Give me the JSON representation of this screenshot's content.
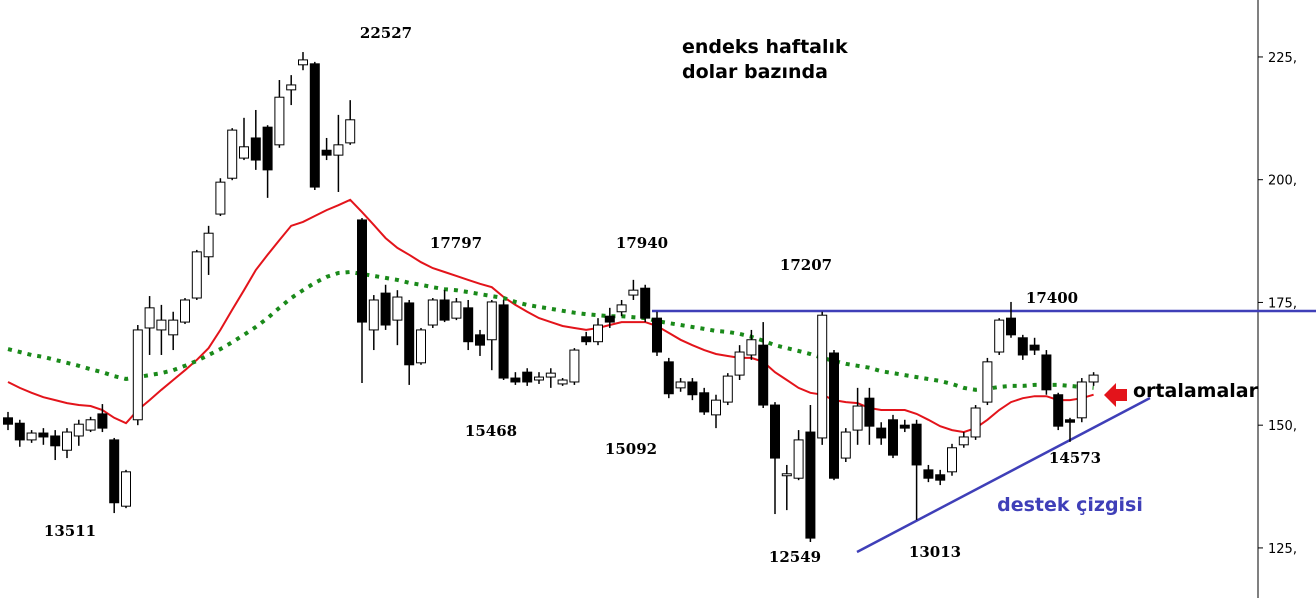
{
  "chart_data": {
    "type": "candlestick",
    "categories": [
      null,
      null,
      null,
      null,
      null,
      null,
      null,
      null,
      null,
      null,
      null,
      null,
      null,
      null,
      null,
      null,
      null,
      null,
      null,
      null,
      null,
      null,
      null,
      null,
      null,
      null,
      null,
      null,
      null,
      null,
      null,
      null,
      null,
      null,
      null,
      null,
      null,
      null,
      null,
      null,
      null,
      null,
      null,
      null,
      null,
      null,
      null,
      null,
      null,
      null,
      null,
      null,
      null,
      null,
      null,
      null,
      null,
      null,
      null,
      null,
      null,
      null,
      null,
      null,
      null,
      null,
      null,
      null,
      null,
      null,
      null,
      null,
      null,
      null,
      null,
      null,
      null,
      null,
      null,
      null,
      null,
      null,
      null,
      null,
      null,
      null,
      null,
      null,
      null,
      null,
      null,
      null,
      null
    ],
    "open": [
      151.5,
      150.4,
      147.0,
      148.4,
      147.8,
      144.9,
      147.8,
      149.0,
      152.3,
      147.0,
      133.5,
      151.1,
      169.8,
      169.4,
      168.4,
      171.0,
      175.9,
      184.3,
      193.0,
      200.3,
      204.4,
      208.5,
      210.7,
      207.1,
      218.3,
      223.4,
      223.6,
      206.0,
      205.0,
      207.5,
      191.8,
      169.4,
      176.9,
      171.4,
      174.9,
      162.7,
      170.4,
      175.5,
      171.8,
      173.9,
      168.4,
      167.4,
      174.5,
      159.6,
      160.8,
      159.2,
      159.8,
      158.4,
      158.8,
      168.0,
      167.0,
      172.2,
      173.1,
      176.5,
      177.9,
      171.8,
      162.9,
      157.6,
      158.8,
      156.6,
      152.1,
      154.7,
      160.2,
      164.3,
      166.3,
      154.1,
      139.7,
      139.2,
      148.6,
      147.4,
      164.7,
      143.3,
      149.0,
      155.5,
      149.4,
      151.1,
      150.0,
      150.2,
      140.9,
      139.9,
      140.5,
      146.0,
      147.6,
      154.7,
      164.9,
      171.8,
      167.8,
      166.3,
      164.3,
      156.2,
      151.1,
      151.5,
      158.8
    ],
    "high": [
      152.7,
      151.1,
      149.0,
      149.4,
      149.0,
      149.4,
      151.1,
      151.7,
      154.3,
      147.4,
      140.9,
      170.4,
      176.3,
      174.5,
      173.1,
      175.9,
      185.7,
      190.6,
      200.3,
      210.5,
      212.6,
      214.2,
      211.1,
      220.3,
      221.3,
      226.0,
      224.0,
      208.5,
      213.2,
      216.2,
      192.2,
      176.5,
      178.6,
      177.5,
      175.5,
      169.8,
      175.9,
      177.5,
      175.9,
      175.5,
      169.4,
      175.5,
      175.5,
      160.8,
      161.6,
      160.8,
      161.6,
      159.6,
      165.7,
      169.0,
      171.8,
      173.9,
      175.5,
      179.6,
      178.6,
      173.1,
      163.7,
      159.6,
      159.6,
      157.6,
      156.2,
      160.6,
      166.3,
      169.4,
      171.0,
      154.7,
      141.9,
      149.0,
      154.1,
      173.1,
      165.3,
      149.4,
      157.6,
      157.6,
      150.6,
      152.1,
      151.1,
      151.1,
      141.9,
      140.9,
      146.2,
      148.6,
      154.1,
      163.7,
      171.8,
      175.1,
      168.4,
      167.8,
      165.3,
      156.6,
      151.5,
      159.6,
      160.8
    ],
    "low": [
      149.0,
      145.6,
      146.4,
      146.0,
      142.9,
      143.3,
      145.8,
      148.6,
      148.6,
      132.1,
      133.1,
      150.0,
      164.3,
      164.3,
      165.3,
      170.6,
      175.5,
      180.6,
      192.6,
      199.9,
      204.0,
      202.0,
      196.3,
      206.5,
      215.2,
      222.3,
      197.9,
      204.0,
      197.5,
      207.1,
      158.6,
      165.3,
      169.4,
      166.3,
      158.2,
      162.3,
      169.8,
      171.0,
      171.4,
      165.3,
      164.1,
      161.2,
      159.2,
      158.2,
      158.0,
      158.4,
      157.6,
      158.0,
      158.2,
      166.3,
      166.3,
      169.8,
      172.2,
      175.5,
      171.0,
      164.1,
      155.5,
      156.8,
      155.1,
      152.1,
      149.4,
      154.1,
      159.2,
      163.3,
      153.5,
      131.9,
      132.7,
      138.8,
      126.2,
      146.0,
      138.8,
      142.5,
      146.0,
      146.0,
      146.0,
      143.3,
      148.6,
      130.7,
      138.4,
      137.8,
      139.7,
      145.4,
      147.0,
      154.1,
      164.3,
      167.8,
      163.3,
      164.3,
      156.2,
      149.0,
      146.6,
      150.6,
      158.0
    ],
    "close": [
      150.2,
      147.0,
      148.4,
      147.6,
      145.8,
      148.6,
      150.2,
      151.1,
      149.4,
      134.2,
      140.5,
      169.4,
      173.9,
      171.4,
      171.4,
      175.5,
      185.3,
      189.1,
      199.5,
      210.1,
      206.7,
      204.0,
      202.0,
      216.8,
      219.3,
      224.4,
      198.5,
      205.0,
      207.1,
      212.2,
      171.0,
      175.5,
      170.4,
      176.1,
      162.3,
      169.4,
      175.5,
      171.4,
      175.1,
      167.0,
      166.3,
      175.1,
      159.6,
      158.8,
      158.8,
      159.8,
      160.6,
      159.2,
      165.3,
      167.0,
      170.4,
      171.0,
      174.5,
      177.5,
      171.8,
      164.9,
      156.4,
      158.8,
      156.2,
      152.7,
      155.1,
      160.0,
      164.9,
      167.4,
      154.1,
      143.3,
      140.1,
      147.0,
      127.0,
      172.4,
      139.2,
      148.6,
      153.9,
      149.8,
      147.4,
      143.9,
      149.4,
      141.9,
      139.2,
      138.8,
      145.4,
      147.6,
      153.5,
      162.9,
      171.4,
      168.4,
      164.3,
      165.3,
      157.2,
      149.8,
      150.6,
      158.8,
      160.2
    ],
    "up_color": "#ffffff",
    "down_color": "#000000",
    "lines": [
      {
        "color": "#e3141b",
        "style": "solid",
        "values": [
          158.8,
          157.6,
          156.6,
          155.7,
          155.1,
          154.5,
          154.1,
          153.9,
          153.1,
          151.5,
          150.4,
          153.1,
          155.1,
          157.2,
          159.2,
          161.2,
          163.3,
          165.7,
          169.4,
          173.5,
          177.5,
          181.6,
          184.7,
          187.7,
          190.6,
          191.4,
          192.6,
          193.8,
          194.8,
          195.9,
          193.4,
          190.8,
          188.1,
          186.1,
          184.7,
          183.2,
          182.0,
          181.2,
          180.4,
          179.6,
          178.8,
          178.1,
          176.1,
          174.5,
          173.1,
          171.8,
          171.0,
          170.2,
          169.8,
          169.4,
          169.8,
          170.4,
          171.0,
          171.0,
          171.0,
          170.2,
          168.8,
          167.4,
          166.3,
          165.3,
          164.5,
          164.1,
          163.7,
          163.7,
          162.9,
          160.8,
          159.2,
          157.6,
          156.6,
          156.2,
          155.1,
          154.7,
          154.5,
          153.5,
          153.1,
          153.1,
          153.1,
          152.3,
          151.1,
          149.8,
          149.0,
          148.6,
          149.4,
          151.1,
          153.1,
          154.7,
          155.5,
          155.9,
          155.9,
          155.1,
          155.1,
          155.5,
          156.2
        ]
      },
      {
        "color": "#1a8a1a",
        "style": "dotted",
        "values": [
          165.5,
          164.9,
          164.3,
          163.9,
          163.3,
          162.7,
          162.1,
          161.4,
          160.8,
          160.0,
          159.4,
          159.8,
          160.2,
          160.6,
          161.2,
          162.1,
          163.1,
          164.3,
          165.5,
          166.9,
          168.4,
          170.0,
          171.8,
          173.9,
          175.9,
          177.5,
          179.0,
          180.2,
          181.0,
          181.2,
          180.8,
          180.4,
          180.0,
          179.6,
          179.0,
          178.6,
          178.1,
          177.7,
          177.5,
          177.1,
          176.7,
          176.3,
          175.9,
          175.1,
          174.5,
          174.1,
          173.7,
          173.3,
          172.9,
          172.6,
          172.4,
          172.2,
          172.2,
          172.0,
          171.8,
          171.2,
          170.8,
          170.4,
          170.0,
          169.6,
          169.2,
          169.0,
          168.6,
          168.0,
          167.2,
          166.3,
          165.7,
          165.1,
          164.5,
          163.7,
          163.1,
          162.5,
          162.1,
          161.7,
          161.0,
          160.6,
          160.2,
          159.8,
          159.4,
          159.0,
          158.4,
          157.6,
          157.2,
          157.4,
          157.8,
          158.0,
          158.0,
          158.2,
          158.2,
          158.2,
          158.0,
          157.8,
          157.6
        ]
      }
    ],
    "ylim": [
      114.8,
      236.6
    ],
    "yticks": [
      {
        "value": 125,
        "label": "125,"
      },
      {
        "value": 150,
        "label": "150,"
      },
      {
        "value": 175,
        "label": "175,"
      },
      {
        "value": 200,
        "label": "200,"
      },
      {
        "value": 225,
        "label": "225,"
      }
    ],
    "annotations": [
      "22527",
      "endeks haftalık",
      "dolar bazında",
      "17797",
      "17940",
      "17207",
      "17400",
      "15468",
      "15092",
      "13511",
      "12549",
      "13013",
      "14573",
      "ortalamalar",
      "destek çizgisi"
    ]
  }
}
